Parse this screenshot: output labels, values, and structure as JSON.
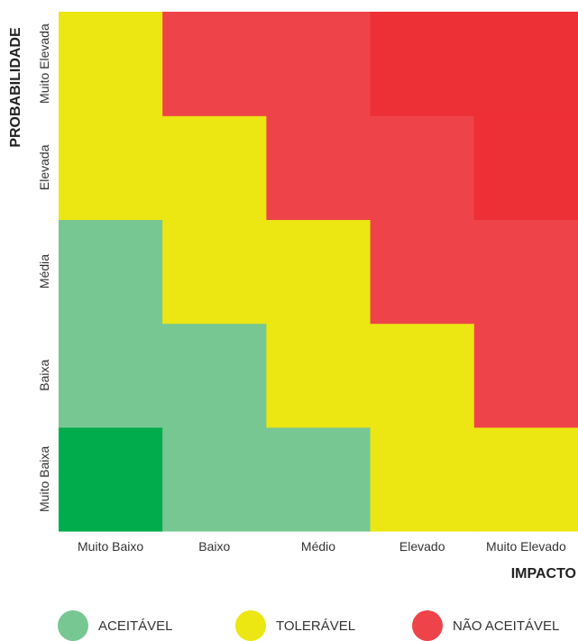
{
  "chart_data": {
    "type": "heatmap",
    "xlabel": "IMPACTO",
    "ylabel": "PROBABILIDADE",
    "x_categories": [
      "Muito Baixo",
      "Baixo",
      "Médio",
      "Elevado",
      "Muito Elevado"
    ],
    "y_categories": [
      "Muito Baixa",
      "Baixa",
      "Média",
      "Elevada",
      "Muito Elevada"
    ],
    "cells": [
      [
        "green_dark",
        "green",
        "green",
        "yellow",
        "yellow"
      ],
      [
        "green",
        "green",
        "yellow",
        "yellow",
        "red"
      ],
      [
        "green",
        "yellow",
        "yellow",
        "red",
        "red"
      ],
      [
        "yellow",
        "yellow",
        "red",
        "red",
        "red_dark"
      ],
      [
        "yellow",
        "red",
        "red",
        "red_dark",
        "red_dark"
      ]
    ],
    "cell_colors": {
      "green_dark": "#00ac4b",
      "green": "#77c792",
      "yellow": "#ece613",
      "red": "#ef434a",
      "red_dark": "#ed2f36"
    },
    "legend": [
      {
        "label": "ACEITÁVEL",
        "color": "#77c792"
      },
      {
        "label": "TOLERÁVEL",
        "color": "#ece613"
      },
      {
        "label": "NÃO ACEITÁVEL",
        "color": "#ef434a"
      }
    ],
    "legend_placement": "bottom"
  }
}
